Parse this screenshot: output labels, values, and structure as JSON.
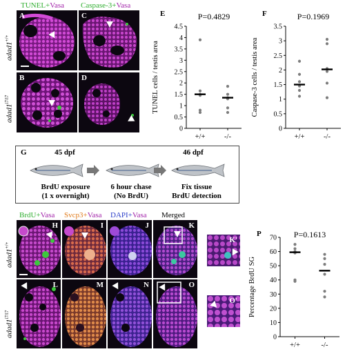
{
  "panels_top": {
    "A": {
      "letter": "A"
    },
    "B": {
      "letter": "B"
    },
    "C": {
      "letter": "C"
    },
    "D": {
      "letter": "D"
    },
    "tunel_label": {
      "part1": "TUNEL",
      "plus": "+",
      "part2": "Vasa"
    },
    "casp_label": {
      "part1": "Caspase-3",
      "plus": "+",
      "part2": "Vasa"
    },
    "row_wt": {
      "gene": "adad1",
      "sup": "+/+"
    },
    "row_mut": {
      "gene": "adad1",
      "sup": "i7/i7"
    }
  },
  "chart_E": {
    "letter": "E",
    "pvalue": "P=0.4829"
  },
  "chart_F": {
    "letter": "F",
    "pvalue": "P=0.1969"
  },
  "chart_P": {
    "letter": "P",
    "pvalue": "P=0.1613"
  },
  "chart_data": [
    {
      "type": "scatter",
      "title": "P=0.4829",
      "ylabel": "TUNEL cells / testis area",
      "categories": [
        "+/+",
        "-/-"
      ],
      "ylim": [
        0,
        4.5
      ],
      "yticks": [
        0,
        0.5,
        1,
        1.5,
        2,
        2.5,
        3,
        3.5,
        4,
        4.5
      ],
      "series": [
        {
          "category": "+/+",
          "values": [
            3.9,
            1.65,
            1.5,
            1.45,
            0.8,
            0.7
          ],
          "mean": 1.5
        },
        {
          "category": "-/-",
          "values": [
            1.85,
            1.5,
            1.35,
            1.3,
            0.9,
            0.7
          ],
          "mean": 1.35
        }
      ]
    },
    {
      "type": "scatter",
      "title": "P=0.1969",
      "ylabel": "Caspase-3 cells / testis area",
      "categories": [
        "+/+",
        "-/-"
      ],
      "ylim": [
        0,
        3.5
      ],
      "yticks": [
        0,
        0.5,
        1,
        1.5,
        2,
        2.5,
        3,
        3.5
      ],
      "series": [
        {
          "category": "+/+",
          "values": [
            2.3,
            1.85,
            1.6,
            1.45,
            1.3,
            1.1
          ],
          "mean": 1.5
        },
        {
          "category": "-/-",
          "values": [
            3.05,
            2.9,
            2.05,
            1.95,
            1.55,
            1.05
          ],
          "mean": 2.02
        }
      ]
    },
    {
      "type": "scatter",
      "title": "P=0.1613",
      "ylabel": "Percentage BrdU SG",
      "categories": [
        "+/+",
        "-/-"
      ],
      "ylim": [
        0,
        70
      ],
      "yticks": [
        0,
        10,
        20,
        30,
        40,
        50,
        60,
        70
      ],
      "series": [
        {
          "category": "+/+",
          "values": [
            65,
            62,
            60,
            59,
            40,
            39
          ],
          "mean": 59.5
        },
        {
          "category": "-/-",
          "values": [
            58,
            55,
            51,
            44,
            32,
            28
          ],
          "mean": 46.5
        }
      ]
    }
  ],
  "scheme_G": {
    "letter": "G",
    "t1": "45 dpf",
    "t2": "46 dpf",
    "step1_title": "BrdU exposure",
    "step1_sub": "(1 x overnight)",
    "step2_title": "6 hour chase",
    "step2_sub": "(No BrdU)",
    "step3_title": "Fix tissue",
    "step3_sub": "BrdU detection"
  },
  "panels_bottom": {
    "brdu_label": {
      "a": "BrdU",
      "plus": "+",
      "b": "Vasa"
    },
    "svcp3_label": {
      "a": "Svcp3",
      "plus": "+",
      "b": "Vasa"
    },
    "dapi_label": {
      "a": "DAPI",
      "plus": "+",
      "b": "Vasa"
    },
    "merged_label": "Merged",
    "letters": {
      "H": "H",
      "I": "I",
      "J": "J",
      "K": "K",
      "Kp": "K'",
      "L": "L",
      "M": "M",
      "N": "N",
      "O": "O",
      "Op": "O'"
    },
    "row_wt": {
      "gene": "adad1",
      "sup": "+/+"
    },
    "row_mut": {
      "gene": "adad1",
      "sup": "i7/i7"
    }
  },
  "colors": {
    "tunel_green": "#3cc83c",
    "vasa_magenta": "#a020a8",
    "svcp3_orange": "#e07a1a",
    "dapi_blue": "#2a3cc8"
  }
}
